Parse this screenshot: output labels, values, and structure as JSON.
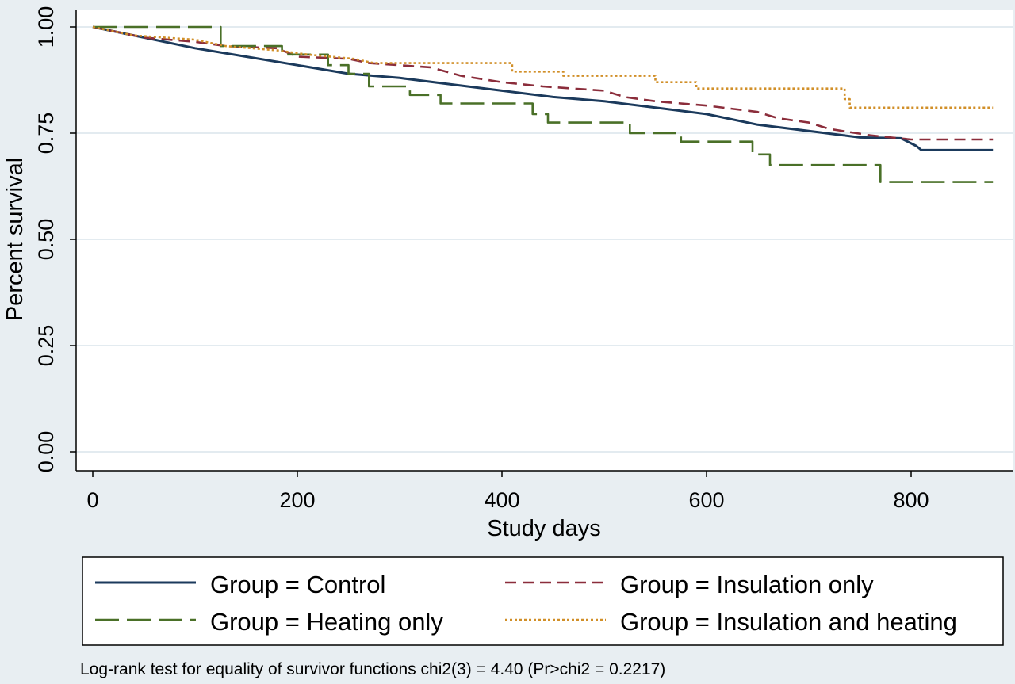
{
  "chart_data": {
    "type": "line",
    "xlabel": "Study days",
    "ylabel": "Percent survival",
    "xlim": [
      0,
      880
    ],
    "ylim": [
      0,
      1
    ],
    "xticks": [
      "0",
      "200",
      "400",
      "600",
      "800"
    ],
    "yticks": [
      "0.00",
      "0.25",
      "0.50",
      "0.75",
      "1.00"
    ],
    "grid": "horizontal",
    "legend_position": "bottom",
    "series": [
      {
        "name": "Group = Control",
        "color": "#1b3a5c",
        "dash": "solid",
        "points": [
          [
            0,
            1.0
          ],
          [
            20,
            0.99
          ],
          [
            50,
            0.975
          ],
          [
            100,
            0.95
          ],
          [
            150,
            0.93
          ],
          [
            200,
            0.91
          ],
          [
            250,
            0.89
          ],
          [
            300,
            0.88
          ],
          [
            350,
            0.865
          ],
          [
            400,
            0.85
          ],
          [
            450,
            0.835
          ],
          [
            500,
            0.825
          ],
          [
            550,
            0.81
          ],
          [
            600,
            0.795
          ],
          [
            650,
            0.77
          ],
          [
            700,
            0.755
          ],
          [
            750,
            0.74
          ],
          [
            790,
            0.738
          ],
          [
            805,
            0.72
          ],
          [
            810,
            0.71
          ],
          [
            880,
            0.71
          ]
        ]
      },
      {
        "name": "Group = Insulation only",
        "color": "#8b2d3b",
        "dash": "14,8",
        "points": [
          [
            0,
            1.0
          ],
          [
            50,
            0.975
          ],
          [
            100,
            0.965
          ],
          [
            130,
            0.955
          ],
          [
            180,
            0.95
          ],
          [
            200,
            0.93
          ],
          [
            250,
            0.925
          ],
          [
            270,
            0.915
          ],
          [
            330,
            0.905
          ],
          [
            360,
            0.885
          ],
          [
            400,
            0.87
          ],
          [
            440,
            0.86
          ],
          [
            500,
            0.85
          ],
          [
            520,
            0.835
          ],
          [
            550,
            0.825
          ],
          [
            600,
            0.815
          ],
          [
            650,
            0.8
          ],
          [
            670,
            0.785
          ],
          [
            700,
            0.775
          ],
          [
            720,
            0.76
          ],
          [
            760,
            0.745
          ],
          [
            800,
            0.735
          ],
          [
            880,
            0.735
          ]
        ]
      },
      {
        "name": "Group = Heating only",
        "color": "#4a7028",
        "dash": "30,10",
        "points": [
          [
            0,
            1.0
          ],
          [
            125,
            1.0
          ],
          [
            125,
            0.955
          ],
          [
            185,
            0.955
          ],
          [
            185,
            0.935
          ],
          [
            230,
            0.935
          ],
          [
            230,
            0.91
          ],
          [
            250,
            0.91
          ],
          [
            250,
            0.89
          ],
          [
            270,
            0.89
          ],
          [
            270,
            0.86
          ],
          [
            310,
            0.86
          ],
          [
            310,
            0.84
          ],
          [
            340,
            0.84
          ],
          [
            340,
            0.82
          ],
          [
            430,
            0.82
          ],
          [
            430,
            0.795
          ],
          [
            445,
            0.795
          ],
          [
            445,
            0.775
          ],
          [
            525,
            0.775
          ],
          [
            525,
            0.75
          ],
          [
            575,
            0.75
          ],
          [
            575,
            0.73
          ],
          [
            645,
            0.73
          ],
          [
            645,
            0.7
          ],
          [
            662,
            0.7
          ],
          [
            662,
            0.675
          ],
          [
            770,
            0.675
          ],
          [
            770,
            0.635
          ],
          [
            880,
            0.635
          ]
        ]
      },
      {
        "name": "Group = Insulation and heating",
        "color": "#d18f28",
        "dash": "3,3",
        "points": [
          [
            0,
            1.0
          ],
          [
            40,
            0.98
          ],
          [
            100,
            0.97
          ],
          [
            130,
            0.955
          ],
          [
            180,
            0.945
          ],
          [
            210,
            0.935
          ],
          [
            255,
            0.925
          ],
          [
            275,
            0.915
          ],
          [
            410,
            0.915
          ],
          [
            410,
            0.895
          ],
          [
            460,
            0.895
          ],
          [
            460,
            0.885
          ],
          [
            550,
            0.885
          ],
          [
            550,
            0.87
          ],
          [
            590,
            0.87
          ],
          [
            590,
            0.855
          ],
          [
            735,
            0.855
          ],
          [
            735,
            0.83
          ],
          [
            740,
            0.83
          ],
          [
            740,
            0.81
          ],
          [
            880,
            0.81
          ]
        ]
      }
    ],
    "annotation": "Log-rank test for equality of survivor functions chi2(3) = 4.40 (Pr>chi2 = 0.2217)"
  }
}
